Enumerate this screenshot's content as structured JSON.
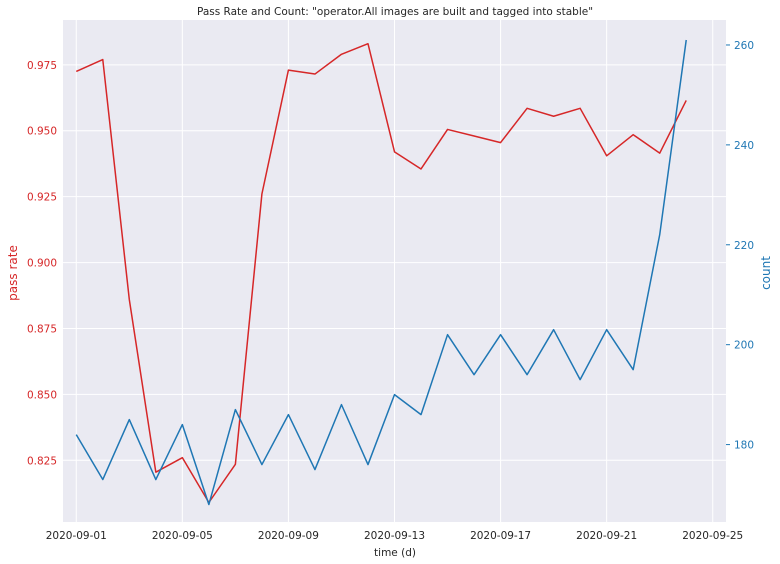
{
  "chart_data": {
    "type": "line",
    "title": "Pass Rate and Count: \"operator.All images are built and tagged into stable\"",
    "xlabel": "time (d)",
    "ylabel_left": "pass rate",
    "ylabel_right": "count",
    "grid": true,
    "x": [
      "2020-09-01",
      "2020-09-02",
      "2020-09-03",
      "2020-09-04",
      "2020-09-05",
      "2020-09-06",
      "2020-09-07",
      "2020-09-08",
      "2020-09-09",
      "2020-09-10",
      "2020-09-11",
      "2020-09-12",
      "2020-09-13",
      "2020-09-14",
      "2020-09-15",
      "2020-09-16",
      "2020-09-17",
      "2020-09-18",
      "2020-09-19",
      "2020-09-20",
      "2020-09-21",
      "2020-09-22",
      "2020-09-23",
      "2020-09-24"
    ],
    "x_range": [
      "2020-08-31T12:00",
      "2020-09-25T12:00"
    ],
    "x_ticks": [
      "2020-09-01",
      "2020-09-05",
      "2020-09-09",
      "2020-09-13",
      "2020-09-17",
      "2020-09-21",
      "2020-09-25"
    ],
    "series": [
      {
        "name": "pass rate",
        "axis": "left",
        "color": "#d62728",
        "values": [
          0.9725,
          0.977,
          0.886,
          0.8205,
          0.826,
          0.809,
          0.8235,
          0.926,
          0.973,
          0.9715,
          0.979,
          0.983,
          0.942,
          0.9355,
          0.9505,
          0.948,
          0.9455,
          0.9585,
          0.9555,
          0.9585,
          0.9405,
          0.9485,
          0.9415,
          0.9615
        ]
      },
      {
        "name": "count",
        "axis": "right",
        "color": "#1f77b4",
        "values": [
          182,
          173,
          185,
          173,
          184,
          168,
          187,
          176,
          186,
          175,
          188,
          176,
          190,
          186,
          202,
          194,
          202,
          194,
          203,
          193,
          203,
          195,
          222,
          261
        ]
      }
    ],
    "ylim_left": [
      0.8016,
      0.992
    ],
    "ylim_right": [
      164.5,
      265
    ],
    "y_ticks_left": [
      "0.825",
      "0.850",
      "0.875",
      "0.900",
      "0.925",
      "0.950",
      "0.975"
    ],
    "y_ticks_right": [
      "180",
      "200",
      "220",
      "240",
      "260"
    ]
  }
}
